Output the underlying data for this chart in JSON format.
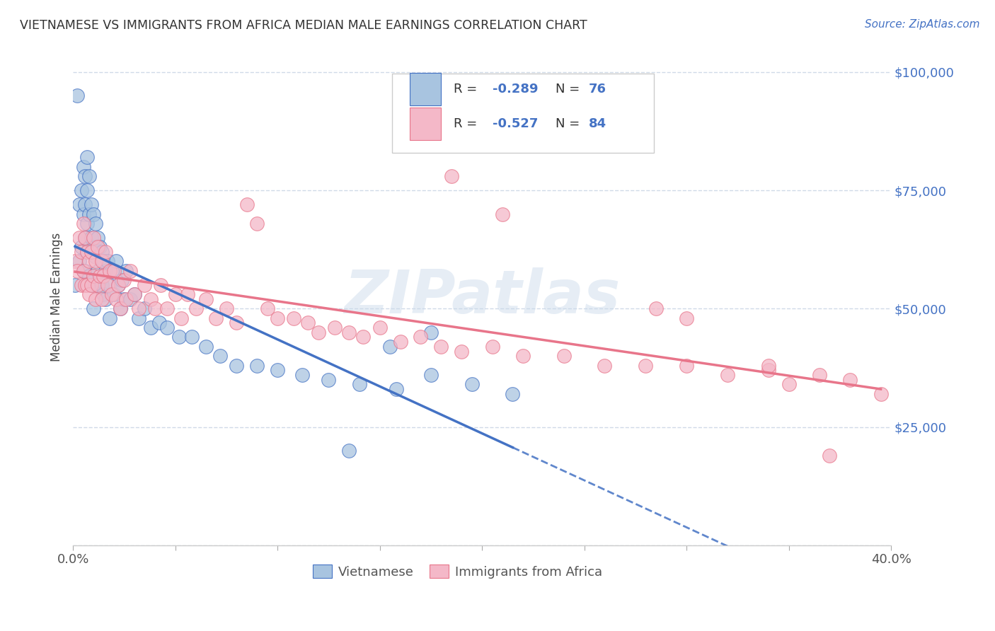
{
  "title": "VIETNAMESE VS IMMIGRANTS FROM AFRICA MEDIAN MALE EARNINGS CORRELATION CHART",
  "source": "Source: ZipAtlas.com",
  "ylabel": "Median Male Earnings",
  "xlim": [
    0.0,
    0.4
  ],
  "ylim": [
    0,
    105000
  ],
  "xticks": [
    0.0,
    0.05,
    0.1,
    0.15,
    0.2,
    0.25,
    0.3,
    0.35,
    0.4
  ],
  "ytick_positions": [
    0,
    25000,
    50000,
    75000,
    100000
  ],
  "ytick_labels": [
    "",
    "$25,000",
    "$50,000",
    "$75,000",
    "$100,000"
  ],
  "watermark": "ZIPatlas",
  "color_viet": "#a8c4e0",
  "color_africa": "#f4b8c8",
  "color_viet_line": "#4472c4",
  "color_africa_line": "#e8758a",
  "color_blue_text": "#4472c4",
  "background_color": "#ffffff",
  "grid_color": "#d0dae8",
  "viet_x": [
    0.001,
    0.002,
    0.003,
    0.003,
    0.004,
    0.004,
    0.005,
    0.005,
    0.005,
    0.006,
    0.006,
    0.006,
    0.006,
    0.007,
    0.007,
    0.007,
    0.007,
    0.008,
    0.008,
    0.008,
    0.008,
    0.009,
    0.009,
    0.009,
    0.01,
    0.01,
    0.01,
    0.01,
    0.011,
    0.011,
    0.011,
    0.012,
    0.012,
    0.013,
    0.013,
    0.014,
    0.014,
    0.015,
    0.015,
    0.016,
    0.016,
    0.017,
    0.018,
    0.018,
    0.019,
    0.02,
    0.021,
    0.022,
    0.023,
    0.024,
    0.025,
    0.026,
    0.028,
    0.03,
    0.032,
    0.035,
    0.038,
    0.042,
    0.046,
    0.052,
    0.058,
    0.065,
    0.072,
    0.08,
    0.09,
    0.1,
    0.112,
    0.125,
    0.14,
    0.158,
    0.175,
    0.195,
    0.215,
    0.175,
    0.155,
    0.135
  ],
  "viet_y": [
    55000,
    95000,
    72000,
    60000,
    75000,
    63000,
    80000,
    70000,
    58000,
    78000,
    72000,
    65000,
    58000,
    82000,
    75000,
    68000,
    62000,
    78000,
    70000,
    63000,
    57000,
    72000,
    65000,
    55000,
    70000,
    63000,
    57000,
    50000,
    68000,
    61000,
    55000,
    65000,
    58000,
    63000,
    56000,
    62000,
    55000,
    60000,
    53000,
    58000,
    52000,
    60000,
    55000,
    48000,
    58000,
    53000,
    60000,
    55000,
    50000,
    56000,
    52000,
    58000,
    52000,
    53000,
    48000,
    50000,
    46000,
    47000,
    46000,
    44000,
    44000,
    42000,
    40000,
    38000,
    38000,
    37000,
    36000,
    35000,
    34000,
    33000,
    36000,
    34000,
    32000,
    45000,
    42000,
    20000
  ],
  "africa_x": [
    0.001,
    0.002,
    0.003,
    0.004,
    0.004,
    0.005,
    0.005,
    0.006,
    0.006,
    0.007,
    0.007,
    0.008,
    0.008,
    0.009,
    0.009,
    0.01,
    0.01,
    0.011,
    0.011,
    0.012,
    0.012,
    0.013,
    0.014,
    0.014,
    0.015,
    0.016,
    0.017,
    0.018,
    0.019,
    0.02,
    0.021,
    0.022,
    0.023,
    0.025,
    0.026,
    0.028,
    0.03,
    0.032,
    0.035,
    0.038,
    0.04,
    0.043,
    0.046,
    0.05,
    0.053,
    0.056,
    0.06,
    0.065,
    0.07,
    0.075,
    0.08,
    0.085,
    0.09,
    0.095,
    0.1,
    0.108,
    0.115,
    0.12,
    0.128,
    0.135,
    0.142,
    0.15,
    0.16,
    0.17,
    0.18,
    0.19,
    0.205,
    0.22,
    0.24,
    0.26,
    0.28,
    0.3,
    0.32,
    0.34,
    0.185,
    0.21,
    0.3,
    0.285,
    0.34,
    0.365,
    0.35,
    0.37,
    0.38,
    0.395
  ],
  "africa_y": [
    60000,
    58000,
    65000,
    62000,
    55000,
    68000,
    58000,
    65000,
    55000,
    62000,
    55000,
    60000,
    53000,
    62000,
    55000,
    65000,
    57000,
    60000,
    52000,
    63000,
    55000,
    57000,
    60000,
    52000,
    57000,
    62000,
    55000,
    58000,
    53000,
    58000,
    52000,
    55000,
    50000,
    56000,
    52000,
    58000,
    53000,
    50000,
    55000,
    52000,
    50000,
    55000,
    50000,
    53000,
    48000,
    53000,
    50000,
    52000,
    48000,
    50000,
    47000,
    72000,
    68000,
    50000,
    48000,
    48000,
    47000,
    45000,
    46000,
    45000,
    44000,
    46000,
    43000,
    44000,
    42000,
    41000,
    42000,
    40000,
    40000,
    38000,
    38000,
    38000,
    36000,
    37000,
    78000,
    70000,
    48000,
    50000,
    38000,
    36000,
    34000,
    19000,
    35000,
    32000
  ]
}
